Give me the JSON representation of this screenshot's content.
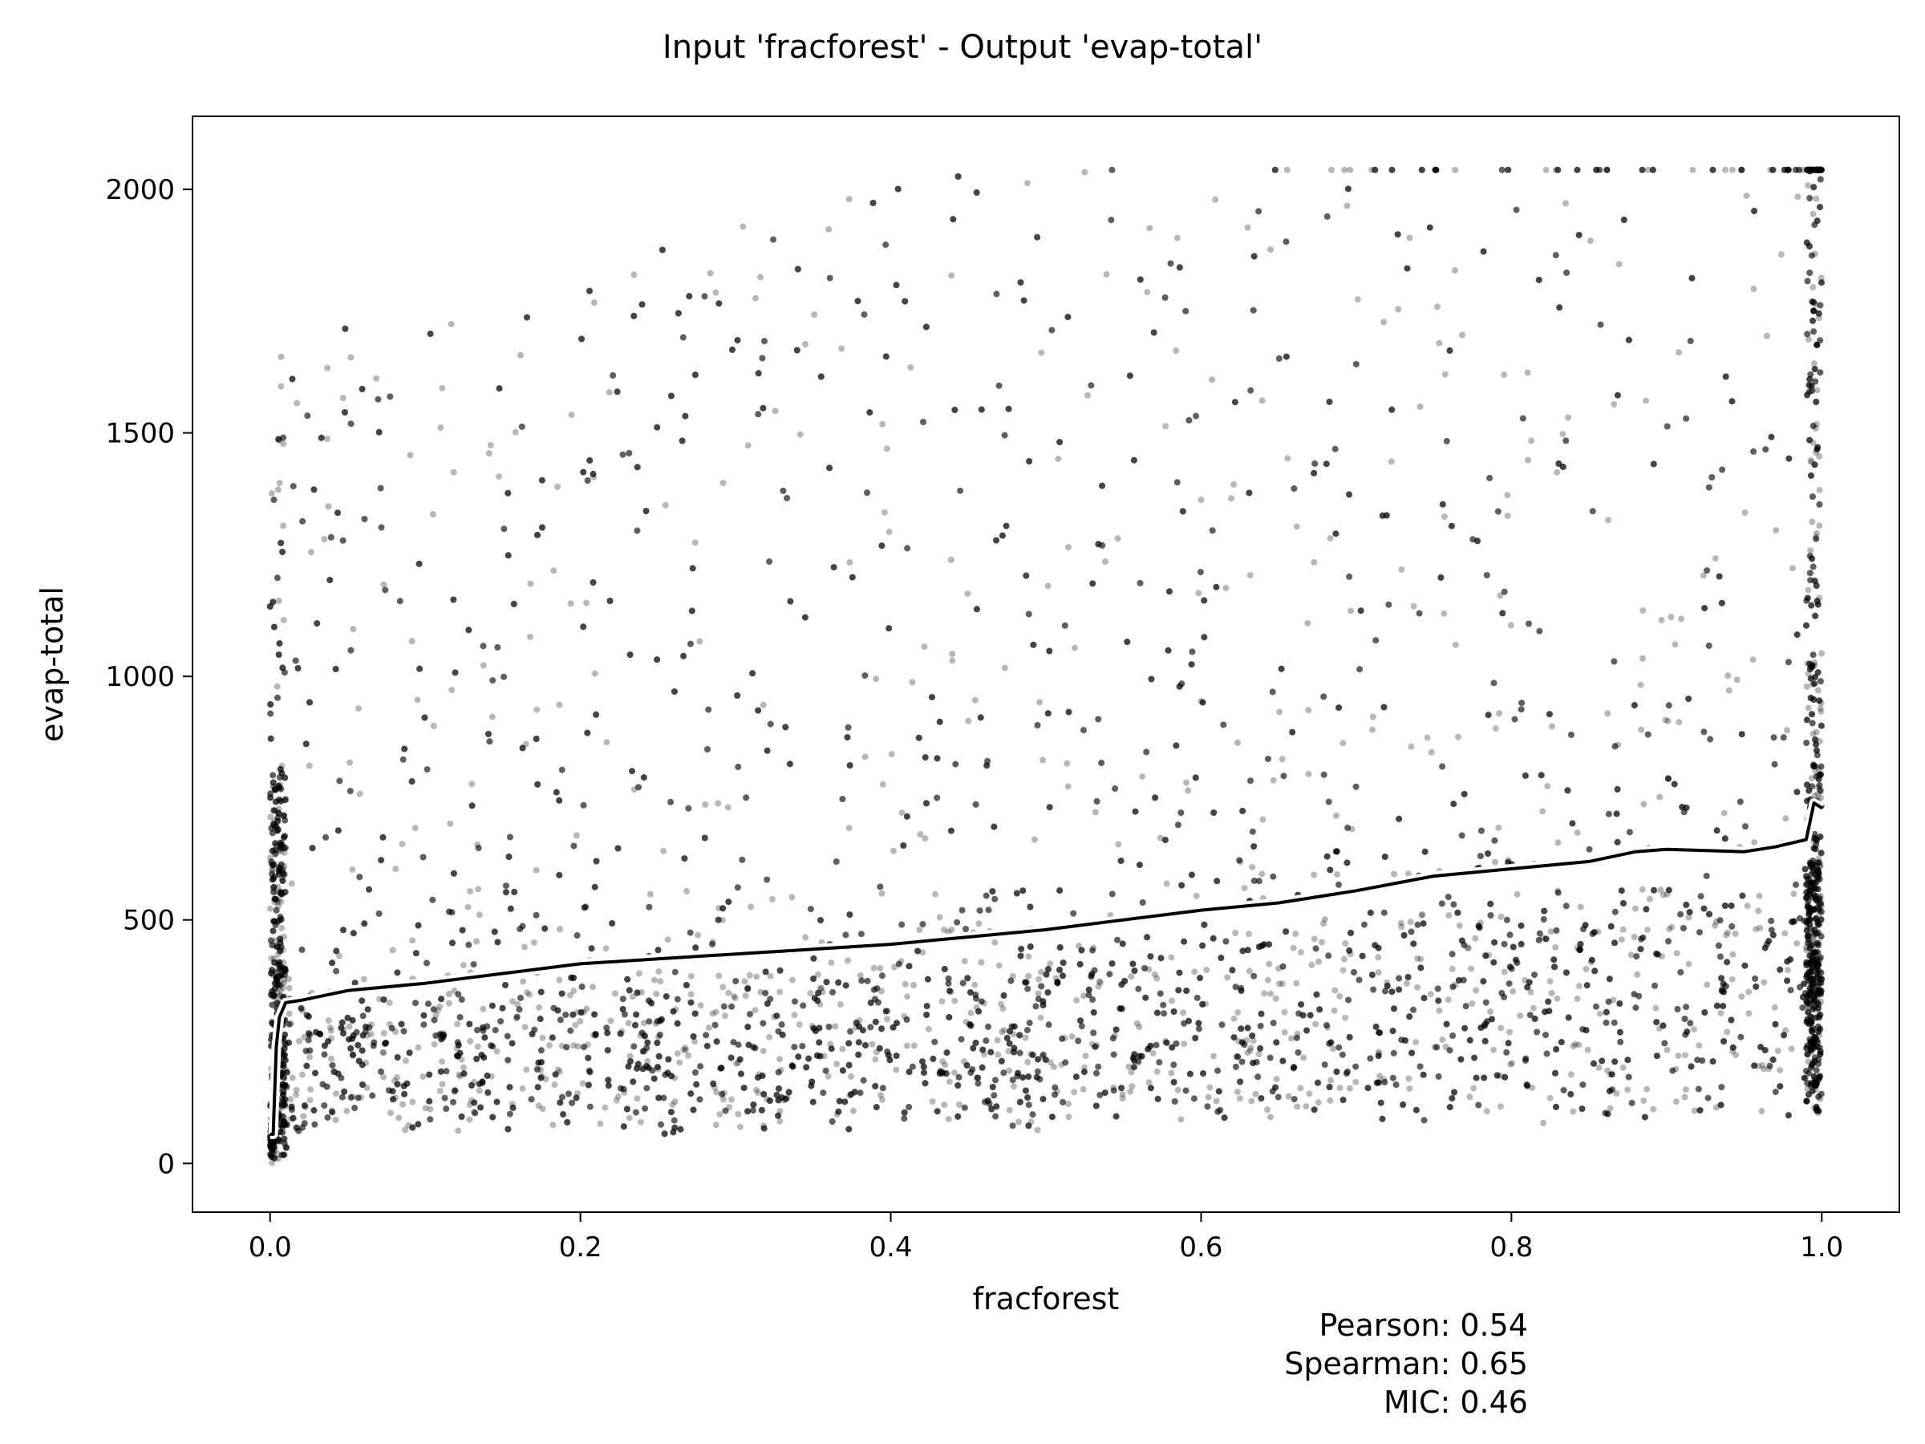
{
  "chart_data": {
    "type": "scatter",
    "title": "Input 'fracforest' - Output 'evap-total'",
    "xlabel": "fracforest",
    "ylabel": "evap-total",
    "xlim": [
      -0.05,
      1.05
    ],
    "ylim": [
      -100,
      2150
    ],
    "xticks": [
      0.0,
      0.2,
      0.4,
      0.6,
      0.8,
      1.0
    ],
    "xtick_labels": [
      "0.0",
      "0.2",
      "0.4",
      "0.6",
      "0.8",
      "1.0"
    ],
    "yticks": [
      0,
      500,
      1000,
      1500,
      2000
    ],
    "ytick_labels": [
      "0",
      "500",
      "1000",
      "1500",
      "2000"
    ],
    "grid": false,
    "point_color": "#000000",
    "trend_color": "#000000",
    "trend_outline_color": "#ffffff",
    "trend_line": {
      "x": [
        0.0,
        0.002,
        0.004,
        0.006,
        0.01,
        0.02,
        0.05,
        0.1,
        0.15,
        0.2,
        0.25,
        0.3,
        0.35,
        0.4,
        0.45,
        0.5,
        0.55,
        0.6,
        0.65,
        0.7,
        0.75,
        0.8,
        0.85,
        0.88,
        0.9,
        0.95,
        0.97,
        0.99,
        0.995,
        1.0
      ],
      "y": [
        60,
        60,
        240,
        300,
        330,
        335,
        355,
        370,
        390,
        410,
        420,
        430,
        440,
        450,
        465,
        480,
        500,
        520,
        535,
        560,
        590,
        605,
        620,
        640,
        645,
        640,
        650,
        665,
        740,
        730
      ]
    },
    "point_bands": [
      {
        "x": 0.0,
        "y_min": 0,
        "y_max": 800,
        "note_density": "very high"
      },
      {
        "x": 1.0,
        "y_min": 100,
        "y_max": 1900,
        "note_density": "very high"
      }
    ],
    "stats": [
      {
        "label": "Pearson",
        "value": "0.54"
      },
      {
        "label": "Spearman",
        "value": "0.65"
      },
      {
        "label": "MIC",
        "value": "0.46"
      }
    ]
  }
}
